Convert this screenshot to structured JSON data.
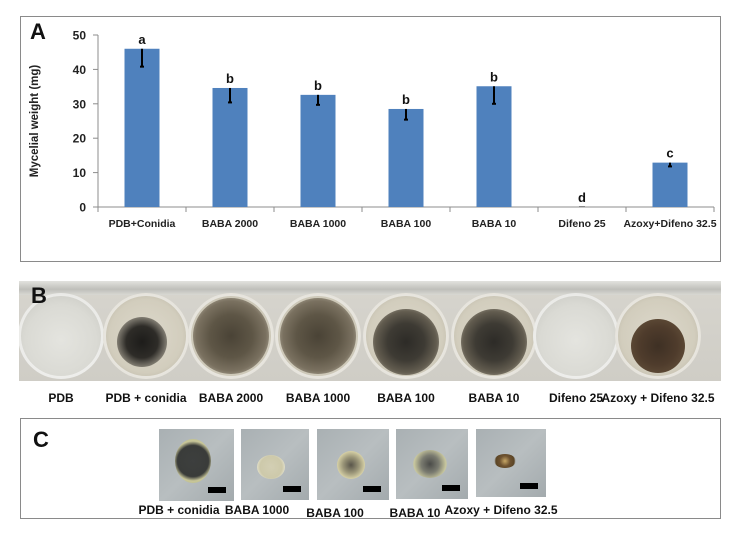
{
  "panels": {
    "A": {
      "letter": "A"
    },
    "B": {
      "letter": "B",
      "wells": [
        {
          "label": "PDB",
          "growth": "none"
        },
        {
          "label": "PDB + conidia",
          "growth": "dense-dark"
        },
        {
          "label": "BABA 2000",
          "growth": "diffuse"
        },
        {
          "label": "BABA 1000",
          "growth": "diffuse"
        },
        {
          "label": "BABA 100",
          "growth": "medium"
        },
        {
          "label": "BABA 10",
          "growth": "medium"
        },
        {
          "label": "Difeno 25",
          "growth": "none"
        },
        {
          "label": "Azoxy + Difeno 32.5",
          "growth": "small-brown"
        }
      ]
    },
    "C": {
      "letter": "C",
      "photos": [
        {
          "label": "PDB + conidia"
        },
        {
          "label": "BABA 1000"
        },
        {
          "label": "BABA 100"
        },
        {
          "label": "BABA 10"
        },
        {
          "label": "Azoxy + Difeno 32.5"
        }
      ]
    }
  },
  "chart_data": {
    "type": "bar",
    "title": "",
    "xlabel": "",
    "ylabel": "Mycelial weight (mg)",
    "ylim": [
      0,
      50
    ],
    "yticks": [
      0,
      10,
      20,
      30,
      40,
      50
    ],
    "grid": false,
    "legend": null,
    "bar_color": "#4f81bd",
    "categories": [
      "PDB+Conidia",
      "BABA 2000",
      "BABA 1000",
      "BABA 100",
      "BABA 10",
      "Difeno 25",
      "Azoxy+Difeno 32.5"
    ],
    "values": [
      46.0,
      34.6,
      32.6,
      28.5,
      35.1,
      0.0,
      12.9
    ],
    "error_lower": [
      5.2,
      4.2,
      2.9,
      3.1,
      5.1,
      0.0,
      1.1
    ],
    "significance_letters": [
      "a",
      "b",
      "b",
      "b",
      "b",
      "d",
      "c"
    ]
  }
}
